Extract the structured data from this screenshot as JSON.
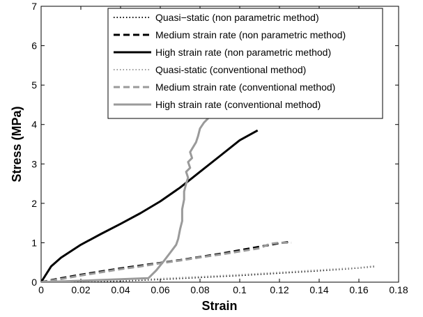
{
  "chart_data": {
    "type": "line",
    "title": "",
    "xlabel": "Strain",
    "ylabel": "Stress (MPa)",
    "xlim": [
      0,
      0.18
    ],
    "ylim": [
      0,
      7
    ],
    "xticks": [
      "0",
      "0.02",
      "0.04",
      "0.06",
      "0.08",
      "0.1",
      "0.12",
      "0.14",
      "0.16",
      "0.18"
    ],
    "yticks": [
      "0",
      "1",
      "2",
      "3",
      "4",
      "5",
      "6",
      "7"
    ],
    "grid": false,
    "legend_position": "top-right",
    "series": [
      {
        "name": "Quasi−static (non parametric method)",
        "color": "#000000",
        "style": "dotted",
        "width": "thin",
        "x": [
          0,
          0.02,
          0.04,
          0.06,
          0.08,
          0.1,
          0.12,
          0.14,
          0.16,
          0.168
        ],
        "y": [
          0,
          0.01,
          0.03,
          0.07,
          0.12,
          0.17,
          0.23,
          0.29,
          0.36,
          0.4
        ]
      },
      {
        "name": "Medium strain rate (non parametric method)",
        "color": "#000000",
        "style": "dashed",
        "width": "thick",
        "x": [
          0,
          0.01,
          0.02,
          0.03,
          0.04,
          0.05,
          0.06,
          0.07,
          0.08,
          0.09,
          0.1,
          0.11,
          0.12,
          0.125
        ],
        "y": [
          0,
          0.1,
          0.19,
          0.27,
          0.35,
          0.42,
          0.49,
          0.56,
          0.64,
          0.72,
          0.81,
          0.9,
          0.99,
          1.02
        ]
      },
      {
        "name": "High strain rate (non parametric method)",
        "color": "#000000",
        "style": "solid",
        "width": "thick",
        "x": [
          0,
          0.005,
          0.01,
          0.02,
          0.03,
          0.04,
          0.05,
          0.06,
          0.07,
          0.08,
          0.09,
          0.1,
          0.109
        ],
        "y": [
          0,
          0.4,
          0.62,
          0.95,
          1.22,
          1.48,
          1.75,
          2.05,
          2.4,
          2.8,
          3.2,
          3.6,
          3.85
        ]
      },
      {
        "name": "Quasi-static (conventional method)",
        "color": "#9a9a9a",
        "style": "dotted",
        "width": "thin",
        "x": [
          0,
          0.02,
          0.04,
          0.06,
          0.08,
          0.1,
          0.12,
          0.14,
          0.16,
          0.168
        ],
        "y": [
          0,
          0.02,
          0.05,
          0.09,
          0.14,
          0.19,
          0.25,
          0.31,
          0.37,
          0.41
        ]
      },
      {
        "name": "Medium strain rate (conventional method)",
        "color": "#9a9a9a",
        "style": "dashed",
        "width": "thick",
        "x": [
          0,
          0.01,
          0.02,
          0.03,
          0.04,
          0.05,
          0.06,
          0.07,
          0.08,
          0.09,
          0.1,
          0.11,
          0.115,
          0.12,
          0.126
        ],
        "y": [
          0,
          0.08,
          0.17,
          0.25,
          0.33,
          0.4,
          0.48,
          0.55,
          0.63,
          0.7,
          0.78,
          0.86,
          0.97,
          1.0,
          1.0
        ]
      },
      {
        "name": "High strain rate (conventional method)",
        "color": "#9a9a9a",
        "style": "solid",
        "width": "thick",
        "x": [
          0,
          0.054,
          0.058,
          0.062,
          0.065,
          0.068,
          0.069,
          0.07,
          0.071,
          0.071,
          0.072,
          0.072,
          0.073,
          0.074,
          0.073,
          0.075,
          0.074,
          0.076,
          0.075,
          0.078,
          0.079,
          0.08,
          0.082,
          0.084,
          0.085
        ],
        "y": [
          0,
          0.1,
          0.3,
          0.55,
          0.75,
          0.95,
          1.1,
          1.35,
          1.55,
          1.85,
          2.1,
          2.3,
          2.5,
          2.65,
          2.8,
          2.9,
          3.05,
          3.15,
          3.3,
          3.55,
          3.7,
          3.9,
          4.05,
          4.15,
          4.25
        ]
      }
    ]
  }
}
